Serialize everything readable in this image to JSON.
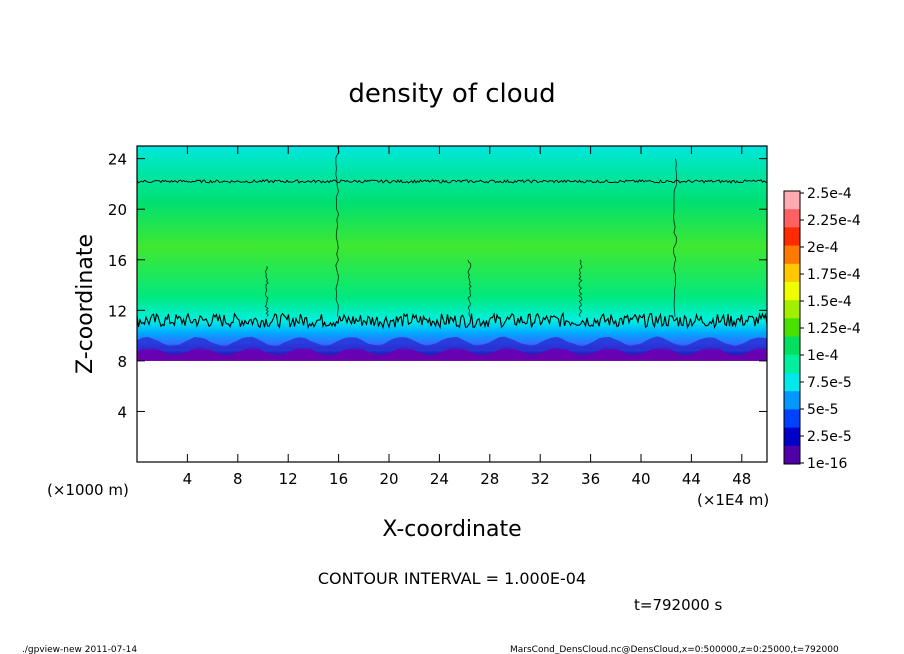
{
  "chart_data": {
    "type": "heatmap",
    "title": "density of cloud",
    "xlabel": "X-coordinate",
    "ylabel": "Z-coordinate",
    "x_unit_label": "(×1E4 m)",
    "y_unit_label": "(×1000 m)",
    "xlim": [
      0,
      50
    ],
    "ylim": [
      0,
      25
    ],
    "x_ticks": [
      4,
      8,
      12,
      16,
      20,
      24,
      28,
      32,
      36,
      40,
      44,
      48
    ],
    "y_ticks": [
      4,
      8,
      12,
      16,
      20,
      24
    ],
    "tick_labels_x": [
      "4",
      "8",
      "12",
      "16",
      "20",
      "24",
      "28",
      "32",
      "36",
      "40",
      "44",
      "48"
    ],
    "tick_labels_y": [
      "4",
      "8",
      "12",
      "16",
      "20",
      "24"
    ],
    "colorbar": {
      "labels": [
        "2.5e-4",
        "2.25e-4",
        "2e-4",
        "1.75e-4",
        "1.5e-4",
        "1.25e-4",
        "1e-4",
        "7.5e-5",
        "5e-5",
        "2.5e-5",
        "1e-16"
      ],
      "colors": [
        "#ffaab0",
        "#ff6060",
        "#ff2a00",
        "#ff7800",
        "#ffc800",
        "#f0ff00",
        "#a0f000",
        "#48e000",
        "#00e060",
        "#00f0a0",
        "#00e8e8",
        "#0098ff",
        "#0040ff",
        "#0000c8",
        "#5000a8"
      ]
    },
    "field_profile": [
      {
        "z": 8.0,
        "value": "1e-16",
        "color": "#7a00a8"
      },
      {
        "z": 8.6,
        "value": "2.5e-5",
        "color": "#2020c0"
      },
      {
        "z": 9.4,
        "value": "5e-5",
        "color": "#3070ff"
      },
      {
        "z": 10.2,
        "value": "7.5e-5",
        "color": "#00a8ff"
      },
      {
        "z": 11.2,
        "value": "1e-4",
        "color": "#00f0e0"
      },
      {
        "z": 13.0,
        "value": "1.25e-4",
        "color": "#00e880"
      },
      {
        "z": 17.0,
        "value": "1.5e-4",
        "color": "#40e830"
      },
      {
        "z": 20.5,
        "value": "1.25e-4",
        "color": "#00e070"
      },
      {
        "z": 23.5,
        "value": "1e-4",
        "color": "#00e6b4"
      },
      {
        "z": 25.0,
        "value": "7.5e-5",
        "color": "#00e6e0"
      }
    ],
    "contour_levels_z": [
      11.2,
      22.2
    ],
    "cloud_base_z": 8.0,
    "contour_interval_text": "CONTOUR INTERVAL = 1.000E-04",
    "time_text": "t=792000 s"
  },
  "footer": {
    "left": "./gpview-new  2011-07-14",
    "right": "MarsCond_DensCloud.nc@DensCloud,x=0:500000,z=0:25000,t=792000"
  }
}
